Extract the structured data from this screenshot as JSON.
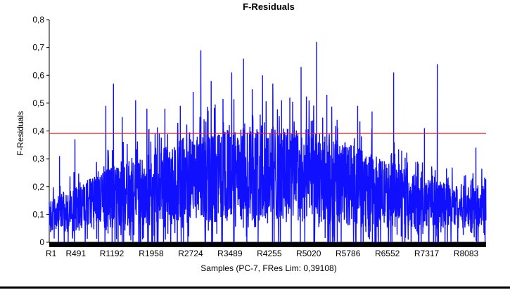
{
  "chart_data": {
    "type": "line",
    "title": "F-Residuals",
    "xlabel": "Samples (PC-7, FRes Lim: 0,39108)",
    "ylabel": "F-Residuals",
    "ylim": [
      0,
      0.8
    ],
    "yticks": [
      "0",
      "0,1",
      "0,2",
      "0,3",
      "0,4",
      "0,5",
      "0,6",
      "0,7",
      "0,8"
    ],
    "x_tick_labels": [
      "R1",
      "R491",
      "R1192",
      "R1958",
      "R2724",
      "R3489",
      "R4255",
      "R5020",
      "R5786",
      "R6552",
      "R7317",
      "R8083"
    ],
    "n_samples": 8500,
    "limit": {
      "value": 0.39108,
      "color": "#e11b1b"
    },
    "series": [
      {
        "color": "#1010ff",
        "profile": {
          "x": [
            0,
            500,
            1200,
            2000,
            2800,
            3500,
            4300,
            5000,
            5800,
            6600,
            7300,
            8000,
            8500
          ],
          "median": [
            0.09,
            0.12,
            0.16,
            0.19,
            0.22,
            0.24,
            0.25,
            0.24,
            0.21,
            0.17,
            0.14,
            0.13,
            0.13
          ],
          "spread": [
            0.06,
            0.08,
            0.11,
            0.13,
            0.15,
            0.17,
            0.17,
            0.17,
            0.15,
            0.12,
            0.09,
            0.08,
            0.08
          ]
        },
        "peaks": [
          {
            "x": 1250,
            "y": 0.57
          },
          {
            "x": 1100,
            "y": 0.49
          },
          {
            "x": 1420,
            "y": 0.45
          },
          {
            "x": 1680,
            "y": 0.51
          },
          {
            "x": 1900,
            "y": 0.48
          },
          {
            "x": 2250,
            "y": 0.48
          },
          {
            "x": 2550,
            "y": 0.49
          },
          {
            "x": 2800,
            "y": 0.54
          },
          {
            "x": 2950,
            "y": 0.69
          },
          {
            "x": 3150,
            "y": 0.58
          },
          {
            "x": 3550,
            "y": 0.61
          },
          {
            "x": 3780,
            "y": 0.66
          },
          {
            "x": 3950,
            "y": 0.55
          },
          {
            "x": 4150,
            "y": 0.6
          },
          {
            "x": 4350,
            "y": 0.57
          },
          {
            "x": 4520,
            "y": 0.51
          },
          {
            "x": 4680,
            "y": 0.52
          },
          {
            "x": 4900,
            "y": 0.63
          },
          {
            "x": 5200,
            "y": 0.72
          },
          {
            "x": 5400,
            "y": 0.53
          },
          {
            "x": 5600,
            "y": 0.44
          },
          {
            "x": 6000,
            "y": 0.49
          },
          {
            "x": 6280,
            "y": 0.47
          },
          {
            "x": 6700,
            "y": 0.61
          },
          {
            "x": 7300,
            "y": 0.41
          },
          {
            "x": 7550,
            "y": 0.64
          },
          {
            "x": 8300,
            "y": 0.34
          },
          {
            "x": 500,
            "y": 0.37
          },
          {
            "x": 200,
            "y": 0.31
          }
        ]
      }
    ],
    "grid": false,
    "legend": "none"
  }
}
